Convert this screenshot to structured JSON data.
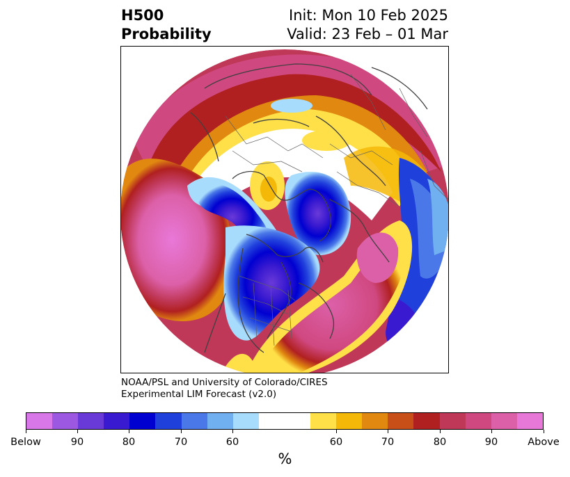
{
  "title": {
    "left_line1": "H500",
    "left_line2": "Probability",
    "right_line1": "Init: Mon 10 Feb 2025",
    "right_line2": "Valid: 23 Feb – 01 Mar"
  },
  "credit": {
    "line1": "NOAA/PSL and University of Colorado/CIRES",
    "line2": "Experimental LIM Forecast (v2.0)"
  },
  "colorbar": {
    "colors": [
      "#d878e8",
      "#9c58e0",
      "#6a3ad8",
      "#3a1ad0",
      "#0000d0",
      "#2040dc",
      "#4a78e8",
      "#70b0f0",
      "#a8dcfc",
      "#ffffff",
      "#ffffff",
      "#ffe048",
      "#f4b808",
      "#e08810",
      "#c85018",
      "#b02020",
      "#c03858",
      "#d04880",
      "#dc60a8",
      "#e878d8"
    ],
    "tick_labels": [
      "Below",
      "90",
      "80",
      "70",
      "60",
      "60",
      "70",
      "80",
      "90",
      "Above"
    ],
    "unit_label": "%"
  },
  "map": {
    "projection": "north-polar-stereographic",
    "region": "Northern Hemisphere"
  }
}
